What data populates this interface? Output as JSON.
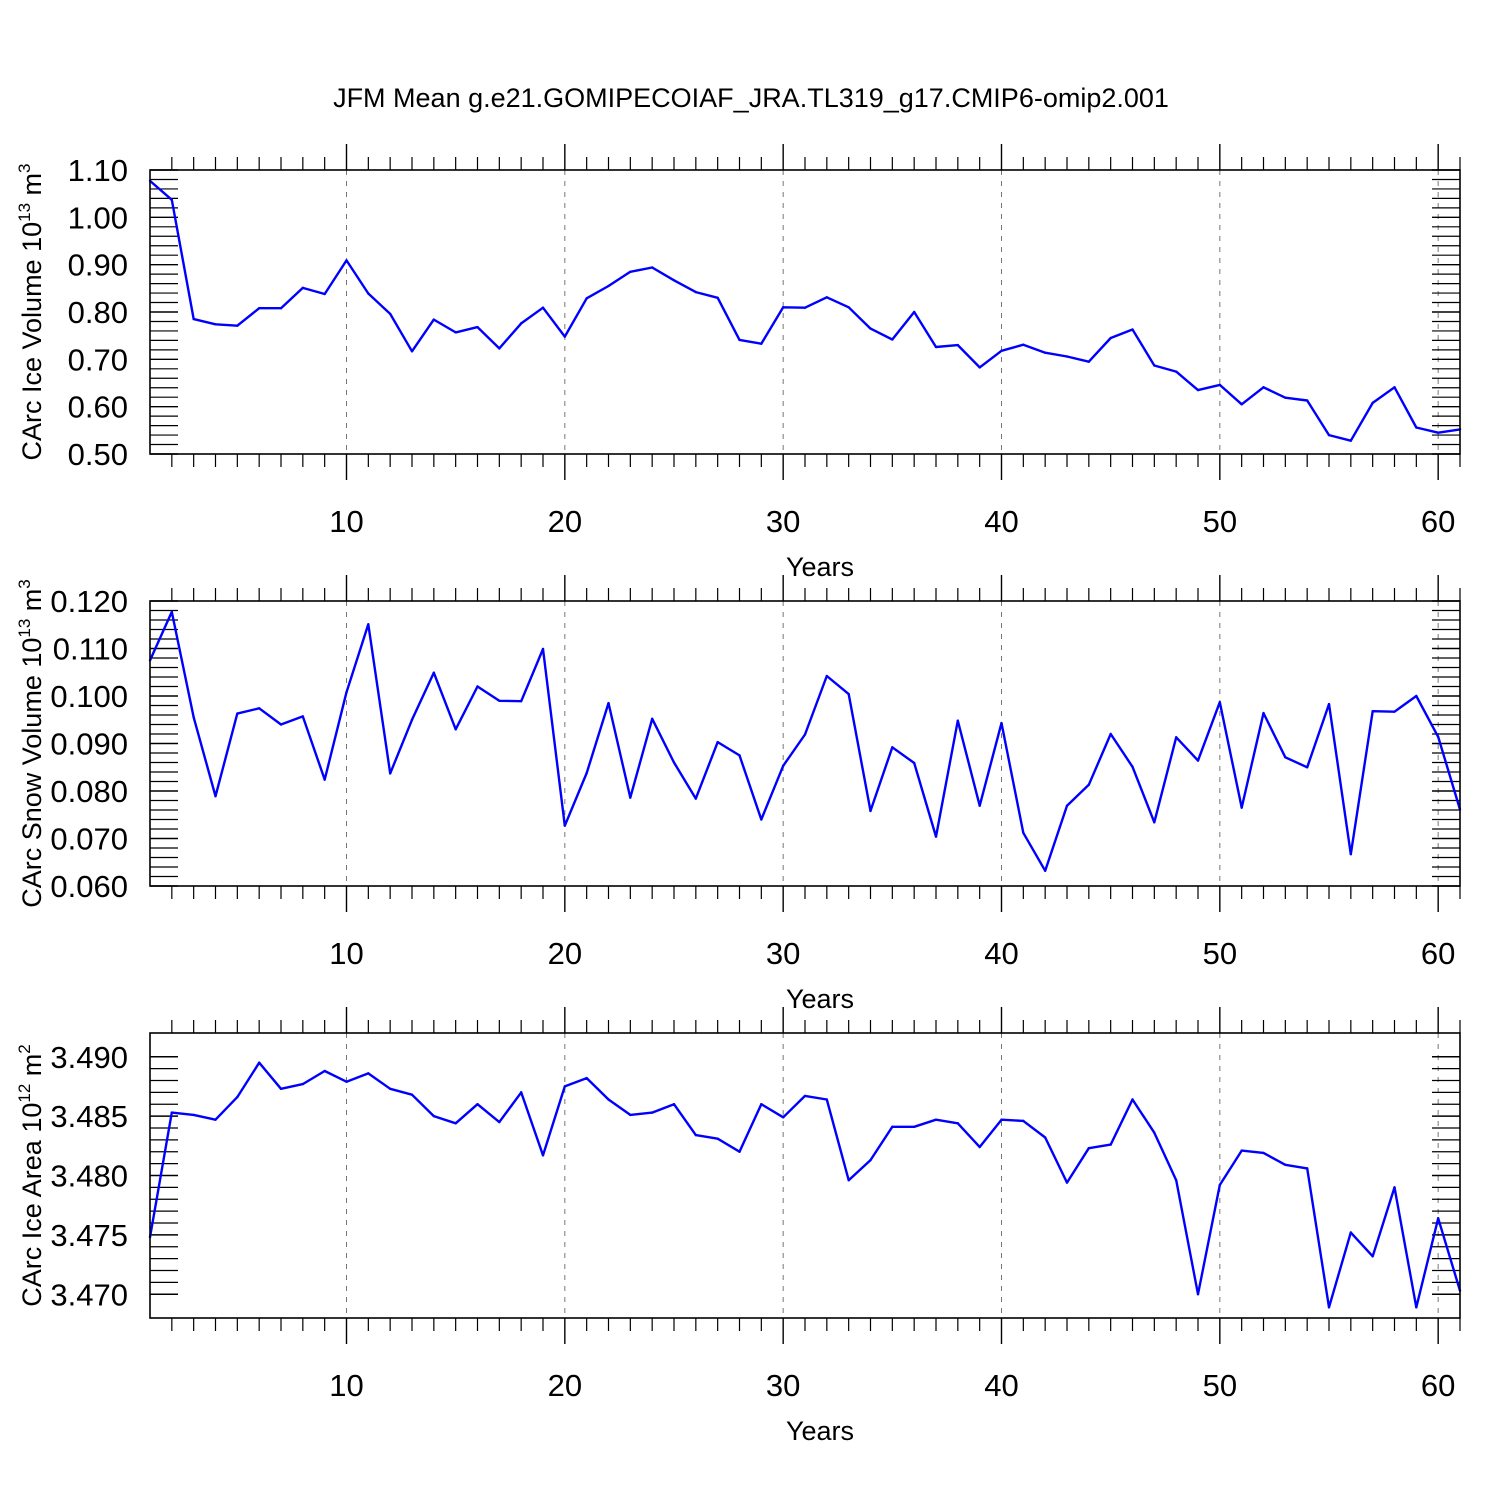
{
  "title": "JFM Mean g.e21.GOMIPECOIAF_JRA.TL319_g17.CMIP6-omip2.001",
  "colors": {
    "line": "#0000ff",
    "axis": "#000000",
    "grid": "#777777"
  },
  "chart_data": [
    {
      "type": "line",
      "title": "JFM Mean g.e21.GOMIPECOIAF_JRA.TL319_g17.CMIP6-omip2.001",
      "xlabel": "Years",
      "ylabel": {
        "base": "CArc Ice Volume 10",
        "exp": "13",
        "unit": " m",
        "unit_exp": "3"
      },
      "xlim": [
        1,
        61
      ],
      "ylim": [
        0.5,
        1.1
      ],
      "xticks": [
        10,
        20,
        30,
        40,
        50,
        60
      ],
      "xtick_labels": [
        "10",
        "20",
        "30",
        "40",
        "50",
        "60"
      ],
      "yticks": [
        0.5,
        0.6,
        0.7,
        0.8,
        0.9,
        1.0,
        1.1
      ],
      "ytick_labels": [
        "0.50",
        "0.60",
        "0.70",
        "0.80",
        "0.90",
        "1.00",
        "1.10"
      ],
      "grid": "vertical dashed at major x ticks",
      "x": [
        1,
        2,
        3,
        4,
        5,
        6,
        7,
        8,
        9,
        10,
        11,
        12,
        13,
        14,
        15,
        16,
        17,
        18,
        19,
        20,
        21,
        22,
        23,
        24,
        25,
        26,
        27,
        28,
        29,
        30,
        31,
        32,
        33,
        34,
        35,
        36,
        37,
        38,
        39,
        40,
        41,
        42,
        43,
        44,
        45,
        46,
        47,
        48,
        49,
        50,
        51,
        52,
        53,
        54,
        55,
        56,
        57,
        58,
        59,
        60,
        61
      ],
      "values": [
        1.077,
        1.037,
        0.785,
        0.774,
        0.771,
        0.808,
        0.808,
        0.851,
        0.838,
        0.909,
        0.839,
        0.796,
        0.717,
        0.784,
        0.757,
        0.768,
        0.723,
        0.776,
        0.809,
        0.748,
        0.829,
        0.855,
        0.885,
        0.894,
        0.867,
        0.842,
        0.83,
        0.741,
        0.733,
        0.81,
        0.809,
        0.831,
        0.81,
        0.765,
        0.742,
        0.8,
        0.726,
        0.73,
        0.683,
        0.718,
        0.731,
        0.714,
        0.706,
        0.695,
        0.745,
        0.763,
        0.687,
        0.674,
        0.635,
        0.646,
        0.605,
        0.641,
        0.619,
        0.613,
        0.54,
        0.528,
        0.608,
        0.641,
        0.556,
        0.545,
        0.552
      ]
    },
    {
      "type": "line",
      "xlabel": "Years",
      "ylabel": {
        "base": "CArc Snow Volume 10",
        "exp": "13",
        "unit": " m",
        "unit_exp": "3"
      },
      "xlim": [
        1,
        61
      ],
      "ylim": [
        0.06,
        0.12
      ],
      "xticks": [
        10,
        20,
        30,
        40,
        50,
        60
      ],
      "xtick_labels": [
        "10",
        "20",
        "30",
        "40",
        "50",
        "60"
      ],
      "yticks": [
        0.06,
        0.07,
        0.08,
        0.09,
        0.1,
        0.11,
        0.12
      ],
      "ytick_labels": [
        "0.060",
        "0.070",
        "0.080",
        "0.090",
        "0.100",
        "0.110",
        "0.120"
      ],
      "grid": "vertical dashed at major x ticks",
      "x": [
        1,
        2,
        3,
        4,
        5,
        6,
        7,
        8,
        9,
        10,
        11,
        12,
        13,
        14,
        15,
        16,
        17,
        18,
        19,
        20,
        21,
        22,
        23,
        24,
        25,
        26,
        27,
        28,
        29,
        30,
        31,
        32,
        33,
        34,
        35,
        36,
        37,
        38,
        39,
        40,
        41,
        42,
        43,
        44,
        45,
        46,
        47,
        48,
        49,
        50,
        51,
        52,
        53,
        54,
        55,
        56,
        57,
        58,
        59,
        60,
        61
      ],
      "values": [
        0.1075,
        0.1177,
        0.0955,
        0.0789,
        0.0963,
        0.0974,
        0.094,
        0.0957,
        0.0824,
        0.1008,
        0.1151,
        0.0837,
        0.095,
        0.1049,
        0.093,
        0.102,
        0.099,
        0.0989,
        0.1099,
        0.0727,
        0.0838,
        0.0985,
        0.0786,
        0.0952,
        0.086,
        0.0784,
        0.0903,
        0.0875,
        0.074,
        0.0853,
        0.0919,
        0.1042,
        0.1004,
        0.0758,
        0.0892,
        0.0859,
        0.0704,
        0.0948,
        0.0769,
        0.0943,
        0.0712,
        0.0632,
        0.0769,
        0.0813,
        0.092,
        0.0851,
        0.0734,
        0.0913,
        0.0864,
        0.0987,
        0.0765,
        0.0964,
        0.0871,
        0.085,
        0.0983,
        0.0667,
        0.0968,
        0.0967,
        0.1,
        0.0914,
        0.0761
      ]
    },
    {
      "type": "line",
      "xlabel": "Years",
      "ylabel": {
        "base": "CArc Ice Area 10",
        "exp": "12",
        "unit": " m",
        "unit_exp": "2"
      },
      "xlim": [
        1,
        61
      ],
      "ylim": [
        3.468,
        3.492
      ],
      "xticks": [
        10,
        20,
        30,
        40,
        50,
        60
      ],
      "xtick_labels": [
        "10",
        "20",
        "30",
        "40",
        "50",
        "60"
      ],
      "yticks": [
        3.47,
        3.475,
        3.48,
        3.485,
        3.49
      ],
      "ytick_labels": [
        "3.470",
        "3.475",
        "3.480",
        "3.485",
        "3.490"
      ],
      "grid": "vertical dashed at major x ticks",
      "x": [
        1,
        2,
        3,
        4,
        5,
        6,
        7,
        8,
        9,
        10,
        11,
        12,
        13,
        14,
        15,
        16,
        17,
        18,
        19,
        20,
        21,
        22,
        23,
        24,
        25,
        26,
        27,
        28,
        29,
        30,
        31,
        32,
        33,
        34,
        35,
        36,
        37,
        38,
        39,
        40,
        41,
        42,
        43,
        44,
        45,
        46,
        47,
        48,
        49,
        50,
        51,
        52,
        53,
        54,
        55,
        56,
        57,
        58,
        59,
        60,
        61
      ],
      "values": [
        3.4748,
        3.4853,
        3.4851,
        3.4847,
        3.4866,
        3.4895,
        3.4873,
        3.4877,
        3.4888,
        3.4879,
        3.4886,
        3.4873,
        3.4868,
        3.485,
        3.4844,
        3.486,
        3.4845,
        3.487,
        3.4817,
        3.4875,
        3.4882,
        3.4864,
        3.4851,
        3.4853,
        3.486,
        3.4834,
        3.4831,
        3.482,
        3.486,
        3.4849,
        3.4867,
        3.4864,
        3.4796,
        3.4813,
        3.4841,
        3.4841,
        3.4847,
        3.4844,
        3.4824,
        3.4847,
        3.4846,
        3.4832,
        3.4794,
        3.4823,
        3.4826,
        3.4864,
        3.4836,
        3.4796,
        3.47,
        3.4792,
        3.4821,
        3.4819,
        3.4809,
        3.4806,
        3.4689,
        3.4752,
        3.4732,
        3.479,
        3.4689,
        3.4764,
        3.4703
      ]
    }
  ]
}
